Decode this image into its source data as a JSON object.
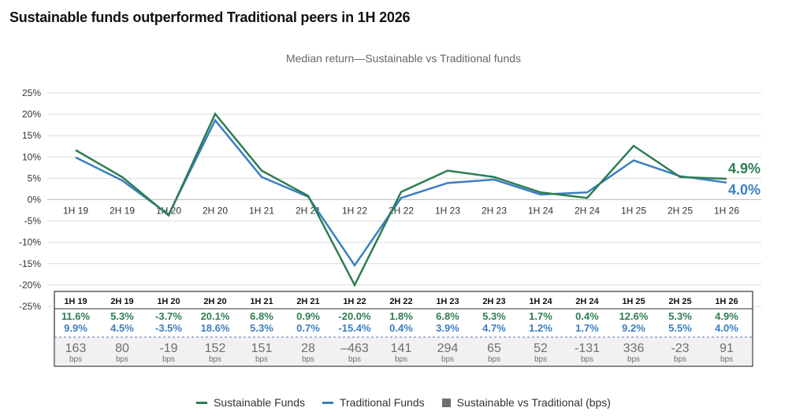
{
  "page": {
    "title": "Sustainable funds outperformed Traditional peers in 1H 2026",
    "subtitle": "Median return—Sustainable vs Traditional funds"
  },
  "colors": {
    "sustainable": "#2e7d52",
    "traditional": "#3a7fc1",
    "diff": "#6e6e6e",
    "grid": "#dcdcdc"
  },
  "chart_data": {
    "type": "line",
    "title": "Median return—Sustainable vs Traditional funds",
    "categories": [
      "1H 19",
      "2H 19",
      "1H 20",
      "2H 20",
      "1H 21",
      "2H 21",
      "1H 22",
      "2H 22",
      "1H 23",
      "2H 23",
      "1H 24",
      "2H 24",
      "1H 25",
      "2H 25",
      "1H 26"
    ],
    "series": [
      {
        "name": "Sustainable Funds",
        "values": [
          11.6,
          5.3,
          -3.7,
          20.1,
          6.8,
          0.9,
          -20.0,
          1.8,
          6.8,
          5.3,
          1.7,
          0.4,
          12.6,
          5.3,
          4.9
        ]
      },
      {
        "name": "Traditional Funds",
        "values": [
          9.9,
          4.5,
          -3.5,
          18.6,
          5.3,
          0.7,
          -15.4,
          0.4,
          3.9,
          4.7,
          1.2,
          1.7,
          9.2,
          5.5,
          4.0
        ]
      }
    ],
    "yticks": [
      "25%",
      "20%",
      "15%",
      "10%",
      "5%",
      "0%",
      "-5%",
      "-10%",
      "-15%",
      "-20%",
      "-25%"
    ],
    "ylim": [
      -25,
      25
    ],
    "end_labels": [
      "4.9%",
      "4.0%"
    ],
    "table": {
      "sustainable": [
        "11.6%",
        "5.3%",
        "-3.7%",
        "20.1%",
        "6.8%",
        "0.9%",
        "-20.0%",
        "1.8%",
        "6.8%",
        "5.3%",
        "1.7%",
        "0.4%",
        "12.6%",
        "5.3%",
        "4.9%"
      ],
      "traditional": [
        "9.9%",
        "4.5%",
        "-3.5%",
        "18.6%",
        "5.3%",
        "0.7%",
        "-15.4%",
        "0.4%",
        "3.9%",
        "4.7%",
        "1.2%",
        "1.7%",
        "9.2%",
        "5.5%",
        "4.0%"
      ],
      "diff_name": "Sustainable vs Traditional (bps)",
      "diff": [
        "163",
        "80",
        "-19",
        "152",
        "151",
        "28",
        "–463",
        "141",
        "294",
        "65",
        "52",
        "-131",
        "336",
        "-23",
        "91"
      ],
      "unit": "bps"
    },
    "legend_position": "bottom",
    "grid": true
  }
}
